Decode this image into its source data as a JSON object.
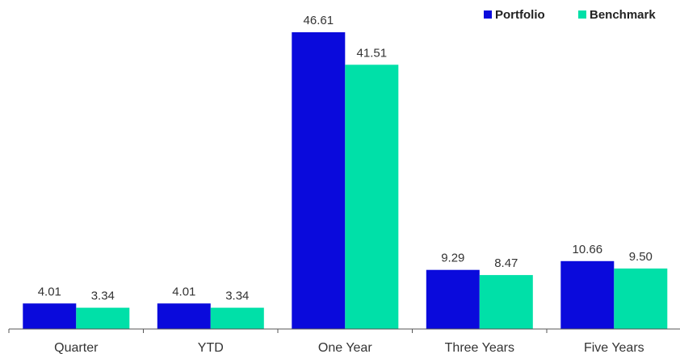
{
  "chart_data": {
    "type": "bar",
    "title": "",
    "xlabel": "",
    "ylabel": "",
    "categories": [
      "Quarter",
      "YTD",
      "One Year",
      "Three Years",
      "Five Years"
    ],
    "series": [
      {
        "name": "Portfolio",
        "color": "#0a0adc",
        "values": [
          4.01,
          4.01,
          46.61,
          9.29,
          10.66
        ],
        "labels": [
          "4.01",
          "4.01",
          "46.61",
          "9.29",
          "10.66"
        ]
      },
      {
        "name": "Benchmark",
        "color": "#00e0a8",
        "values": [
          3.34,
          3.34,
          41.51,
          8.47,
          9.5
        ],
        "labels": [
          "3.34",
          "3.34",
          "41.51",
          "8.47",
          "9.50"
        ]
      }
    ],
    "ylim": [
      0,
      46.61
    ],
    "grid": false,
    "legend_position": "top-right"
  }
}
